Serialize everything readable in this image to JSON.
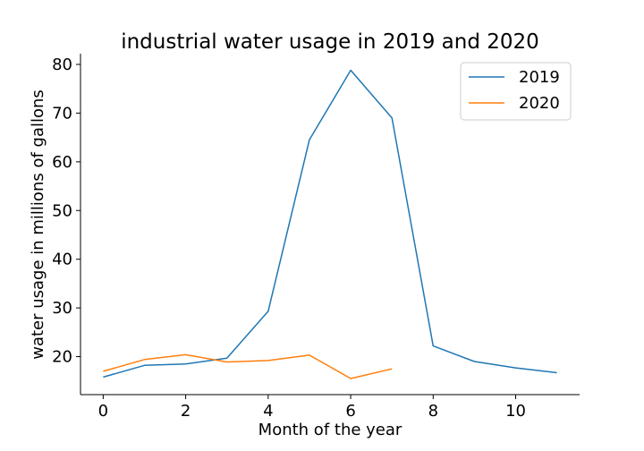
{
  "chart_data": {
    "type": "line",
    "title": "industrial water usage in 2019 and 2020",
    "xlabel": "Month of the year",
    "ylabel": "water usage in millions of gallons",
    "xlim": [
      -0.55,
      11.55
    ],
    "ylim": [
      12.2,
      82.2
    ],
    "xticks": [
      0,
      2,
      4,
      6,
      8,
      10
    ],
    "yticks": [
      20,
      30,
      40,
      50,
      60,
      70,
      80
    ],
    "grid": false,
    "legend_position": "top-right",
    "series": [
      {
        "name": "2019",
        "color": "#1f77b4",
        "x": [
          0,
          1,
          2,
          3,
          4,
          5,
          6,
          7,
          8,
          9,
          10,
          11
        ],
        "y": [
          15.8,
          18.2,
          18.5,
          19.7,
          29.3,
          64.5,
          78.8,
          69.0,
          22.2,
          19.0,
          17.7,
          16.7
        ]
      },
      {
        "name": "2020",
        "color": "#ff7f0e",
        "x": [
          0,
          1,
          2,
          3,
          4,
          5,
          6,
          7
        ],
        "y": [
          17.0,
          19.4,
          20.4,
          18.9,
          19.2,
          20.3,
          15.5,
          17.5
        ]
      }
    ]
  }
}
